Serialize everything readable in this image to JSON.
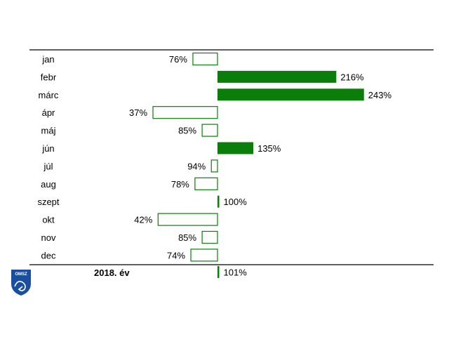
{
  "logo": {
    "text": "OMSZ",
    "color": "#1a4fa0"
  },
  "colors": {
    "above": "#0a7d0a",
    "below_fill": "#ffffff",
    "below_stroke": "#0a7d0a",
    "rule": "#000000"
  },
  "chart_data": {
    "type": "bar",
    "orientation": "horizontal",
    "baseline": 100,
    "value_unit": "%",
    "categories": [
      "jan",
      "febr",
      "márc",
      "ápr",
      "máj",
      "jún",
      "júl",
      "aug",
      "szept",
      "okt",
      "nov",
      "dec"
    ],
    "values": [
      76,
      216,
      243,
      37,
      85,
      135,
      94,
      78,
      100,
      42,
      85,
      74
    ],
    "value_labels": [
      "76%",
      "216%",
      "243%",
      "37%",
      "85%",
      "135%",
      "94%",
      "78%",
      "100%",
      "42%",
      "85%",
      "74%"
    ],
    "summary": {
      "label": "2018.  év",
      "value": 101,
      "value_label": "101%"
    }
  }
}
